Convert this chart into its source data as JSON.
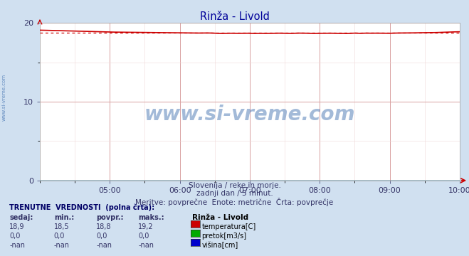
{
  "title": "Rinža - Livold",
  "bg_color": "#d0e0f0",
  "plot_bg_color": "#ffffff",
  "grid_color_major": "#d8a0a0",
  "grid_color_minor": "#f0d8d8",
  "xlim": [
    0,
    288
  ],
  "ylim": [
    0,
    20
  ],
  "yticks": [
    0,
    10,
    20
  ],
  "xtick_positions": [
    48,
    96,
    144,
    192,
    240,
    288
  ],
  "xtick_labels": [
    "05:00",
    "06:00",
    "07:00",
    "08:00",
    "09:00",
    "10:00"
  ],
  "temp_avg": 18.8,
  "temp_start": 19.1,
  "temp_end": 18.9,
  "temp_color": "#cc0000",
  "pretok_color": "#00aa00",
  "visina_color": "#0000cc",
  "subtitle1": "Slovenija / reke in morje.",
  "subtitle2": "zadnji dan / 5 minut.",
  "subtitle3": "Meritve: povprečne  Enote: metrične  Črta: povprečje",
  "table_header": "TRENUTNE  VREDNOSTI  (polna črta):",
  "col_headers": [
    "sedaj:",
    "min.:",
    "povpr.:",
    "maks.:",
    "Rinža - Livold"
  ],
  "row1": [
    "18,9",
    "18,5",
    "18,8",
    "19,2"
  ],
  "row2": [
    "0,0",
    "0,0",
    "0,0",
    "0,0"
  ],
  "row3": [
    "-nan",
    "-nan",
    "-nan",
    "-nan"
  ],
  "legend_labels": [
    "temperatura[C]",
    "pretok[m3/s]",
    "višina[cm]"
  ],
  "watermark": "www.si-vreme.com",
  "watermark_color": "#3366aa",
  "watermark_alpha": 0.45,
  "left_text": "www.si-vreme.com",
  "title_color": "#000099",
  "text_color": "#333366"
}
